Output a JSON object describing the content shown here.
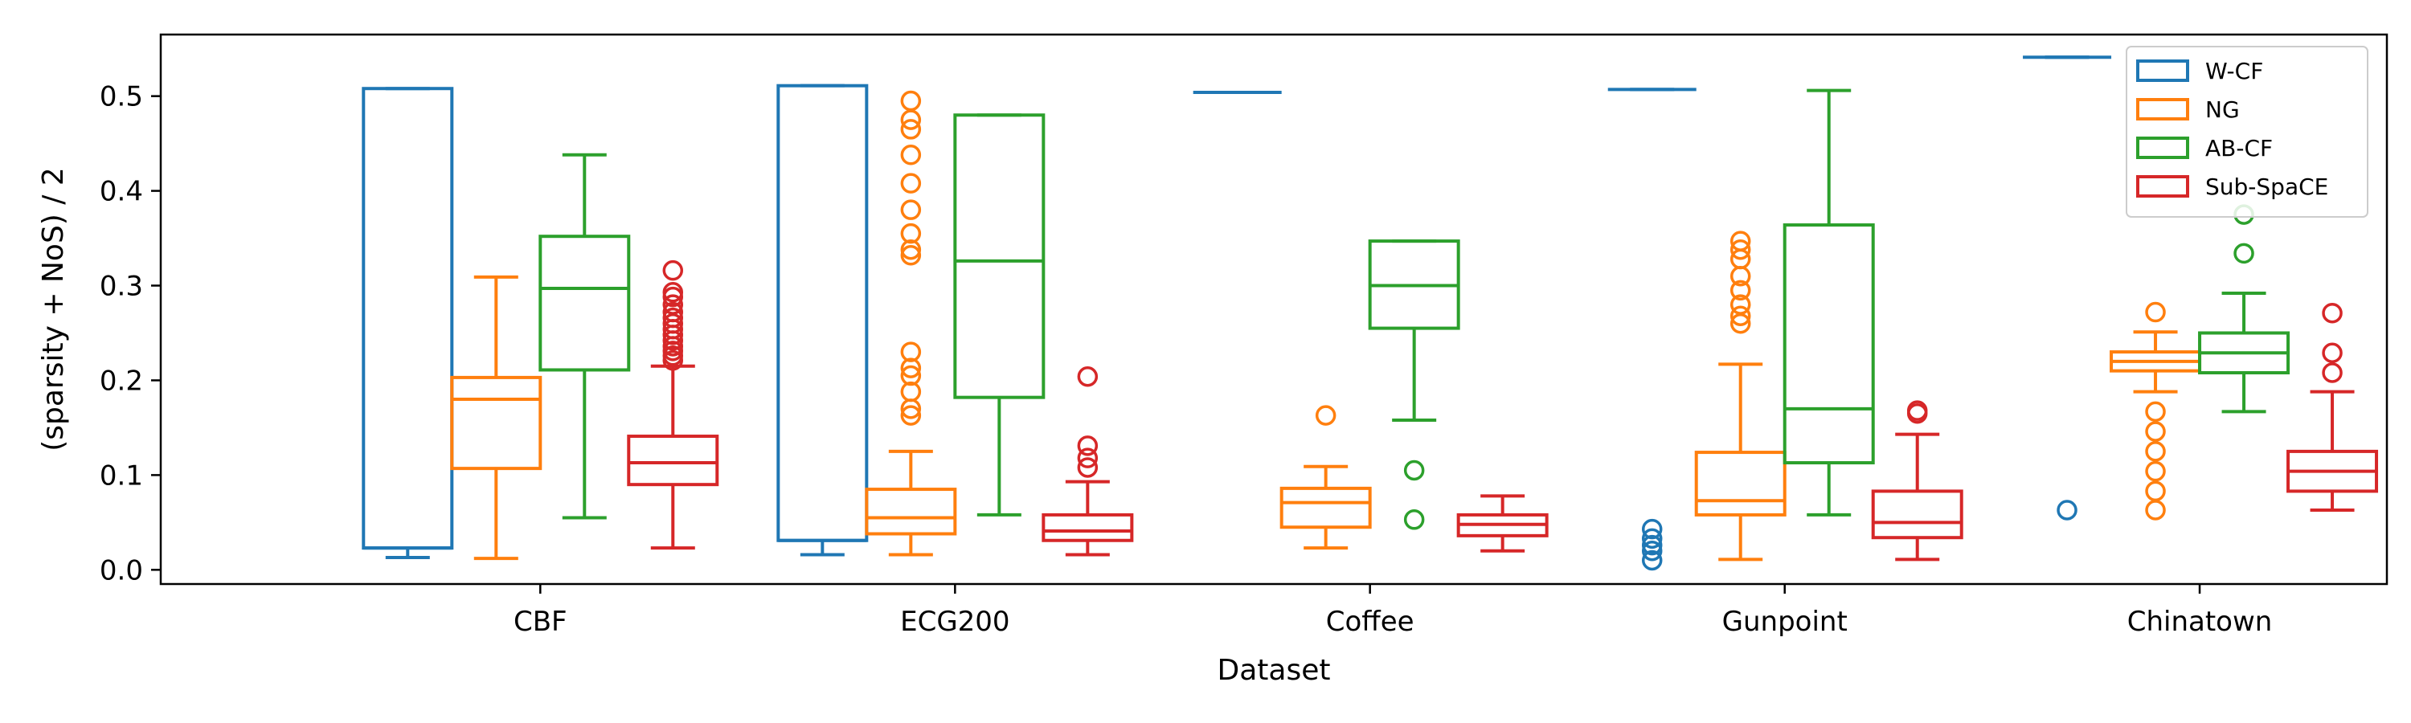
{
  "chart_data": {
    "type": "box",
    "xlabel": "Dataset",
    "ylabel": "(sparsity + NoS) / 2",
    "ylim": [
      -0.015,
      0.565
    ],
    "yticks": [
      0.0,
      0.1,
      0.2,
      0.3,
      0.4,
      0.5
    ],
    "ytick_labels": [
      "0.0",
      "0.1",
      "0.2",
      "0.3",
      "0.4",
      "0.5"
    ],
    "categories": [
      "CBF",
      "ECG200",
      "Coffee",
      "Gunpoint",
      "Chinatown"
    ],
    "legend_position": "top-right",
    "grid": false,
    "series": [
      {
        "name": "W-CF",
        "color": "#1f77b4",
        "boxes": [
          {
            "whislo": 0.013,
            "q1": 0.023,
            "med": 0.023,
            "q3": 0.508,
            "whishi": 0.508,
            "fliers": []
          },
          {
            "whislo": 0.016,
            "q1": 0.031,
            "med": 0.031,
            "q3": 0.511,
            "whishi": 0.511,
            "fliers": []
          },
          {
            "whislo": 0.504,
            "q1": 0.504,
            "med": 0.504,
            "q3": 0.504,
            "whishi": 0.504,
            "fliers": []
          },
          {
            "whislo": 0.507,
            "q1": 0.507,
            "med": 0.507,
            "q3": 0.507,
            "whishi": 0.507,
            "fliers": [
              0.043,
              0.033,
              0.026,
              0.02,
              0.01
            ]
          },
          {
            "whislo": 0.541,
            "q1": 0.541,
            "med": 0.541,
            "q3": 0.541,
            "whishi": 0.541,
            "fliers": [
              0.063
            ]
          }
        ]
      },
      {
        "name": "NG",
        "color": "#ff7f0e",
        "boxes": [
          {
            "whislo": 0.012,
            "q1": 0.107,
            "med": 0.18,
            "q3": 0.203,
            "whishi": 0.309,
            "fliers": []
          },
          {
            "whislo": 0.016,
            "q1": 0.038,
            "med": 0.055,
            "q3": 0.085,
            "whishi": 0.125,
            "fliers": [
              0.495,
              0.475,
              0.465,
              0.438,
              0.408,
              0.38,
              0.355,
              0.338,
              0.332,
              0.23,
              0.213,
              0.205,
              0.188,
              0.17,
              0.163
            ]
          },
          {
            "whislo": 0.023,
            "q1": 0.045,
            "med": 0.071,
            "q3": 0.086,
            "whishi": 0.109,
            "fliers": [
              0.163
            ]
          },
          {
            "whislo": 0.011,
            "q1": 0.058,
            "med": 0.073,
            "q3": 0.124,
            "whishi": 0.217,
            "fliers": [
              0.347,
              0.338,
              0.328,
              0.31,
              0.295,
              0.28,
              0.268,
              0.26
            ]
          },
          {
            "whislo": 0.188,
            "q1": 0.21,
            "med": 0.22,
            "q3": 0.23,
            "whishi": 0.251,
            "fliers": [
              0.272,
              0.167,
              0.146,
              0.125,
              0.104,
              0.083,
              0.063
            ]
          }
        ]
      },
      {
        "name": "AB-CF",
        "color": "#2ca02c",
        "boxes": [
          {
            "whislo": 0.055,
            "q1": 0.211,
            "med": 0.297,
            "q3": 0.352,
            "whishi": 0.438,
            "fliers": []
          },
          {
            "whislo": 0.058,
            "q1": 0.182,
            "med": 0.326,
            "q3": 0.48,
            "whishi": 0.48,
            "fliers": []
          },
          {
            "whislo": 0.158,
            "q1": 0.255,
            "med": 0.3,
            "q3": 0.347,
            "whishi": 0.347,
            "fliers": [
              0.105,
              0.053
            ]
          },
          {
            "whislo": 0.058,
            "q1": 0.113,
            "med": 0.17,
            "q3": 0.364,
            "whishi": 0.506,
            "fliers": []
          },
          {
            "whislo": 0.167,
            "q1": 0.208,
            "med": 0.229,
            "q3": 0.25,
            "whishi": 0.292,
            "fliers": [
              0.375,
              0.334
            ]
          }
        ]
      },
      {
        "name": "Sub-SpaCE",
        "color": "#d62728",
        "boxes": [
          {
            "whislo": 0.023,
            "q1": 0.09,
            "med": 0.113,
            "q3": 0.141,
            "whishi": 0.215,
            "fliers": [
              0.316,
              0.293,
              0.288,
              0.28,
              0.272,
              0.266,
              0.26,
              0.254,
              0.248,
              0.242,
              0.236,
              0.231,
              0.226,
              0.221
            ]
          },
          {
            "whislo": 0.016,
            "q1": 0.031,
            "med": 0.041,
            "q3": 0.058,
            "whishi": 0.093,
            "fliers": [
              0.204,
              0.131,
              0.118,
              0.108
            ]
          },
          {
            "whislo": 0.02,
            "q1": 0.036,
            "med": 0.048,
            "q3": 0.058,
            "whishi": 0.078,
            "fliers": []
          },
          {
            "whislo": 0.011,
            "q1": 0.034,
            "med": 0.05,
            "q3": 0.083,
            "whishi": 0.143,
            "fliers": [
              0.168,
              0.165
            ]
          },
          {
            "whislo": 0.063,
            "q1": 0.083,
            "med": 0.104,
            "q3": 0.125,
            "whishi": 0.188,
            "fliers": [
              0.271,
              0.229,
              0.208
            ]
          }
        ]
      }
    ]
  }
}
